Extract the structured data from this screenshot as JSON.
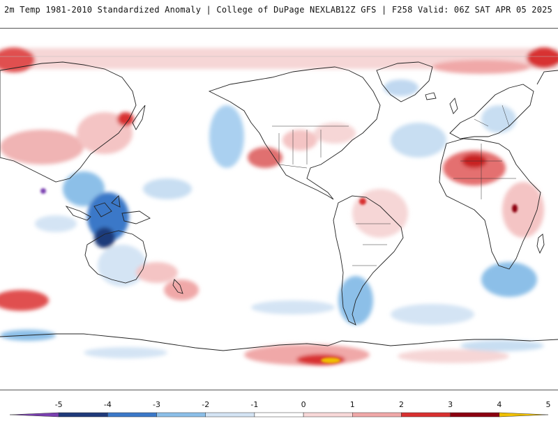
{
  "header": {
    "title_left": "2m Temp 1981-2010 Standardized Anomaly | College of DuPage NEXLAB",
    "title_right": "12Z GFS | F258 Valid: 06Z SAT APR 05 2025"
  },
  "map": {
    "projection": "equirectangular",
    "field": "2m temperature standardized anomaly"
  },
  "colorbar": {
    "labels": [
      "-5",
      "-4",
      "-3",
      "-2",
      "-1",
      "0",
      "1",
      "2",
      "3",
      "4",
      "5"
    ],
    "colors": [
      "#7a3fb0",
      "#1f3a7a",
      "#3b78c8",
      "#8cbfe8",
      "#d4e4f4",
      "#ffffff",
      "#f8d8d8",
      "#f0a8a8",
      "#d83030",
      "#8c0010",
      "#f0c000"
    ]
  }
}
